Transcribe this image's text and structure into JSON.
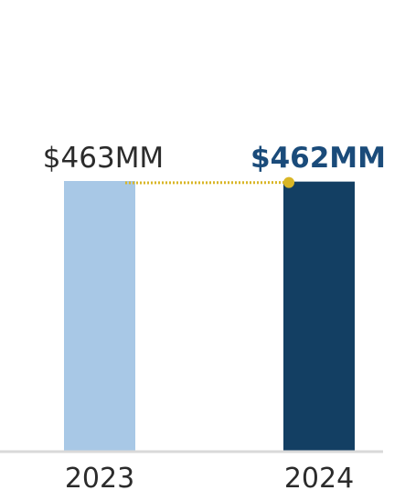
{
  "chart_data": {
    "type": "bar",
    "categories": [
      "2023",
      "2024"
    ],
    "series": [
      {
        "values": [
          463,
          462
        ]
      }
    ],
    "data_labels": [
      "$463MM",
      "$462MM"
    ],
    "colors": {
      "bars": [
        "#a8c8e6",
        "#133f63"
      ],
      "labels": [
        "#2b2b2b",
        "#1a4b7a"
      ],
      "connector": "#d9b626",
      "baseline": "#d9d9d9",
      "tick_labels": "#2b2b2b"
    },
    "connector": {
      "style": "dotted",
      "from": "2023",
      "to": "2024",
      "marker_end": "dot"
    },
    "title": "",
    "xlabel": "",
    "ylabel": "",
    "grid": false,
    "legend": "none"
  }
}
